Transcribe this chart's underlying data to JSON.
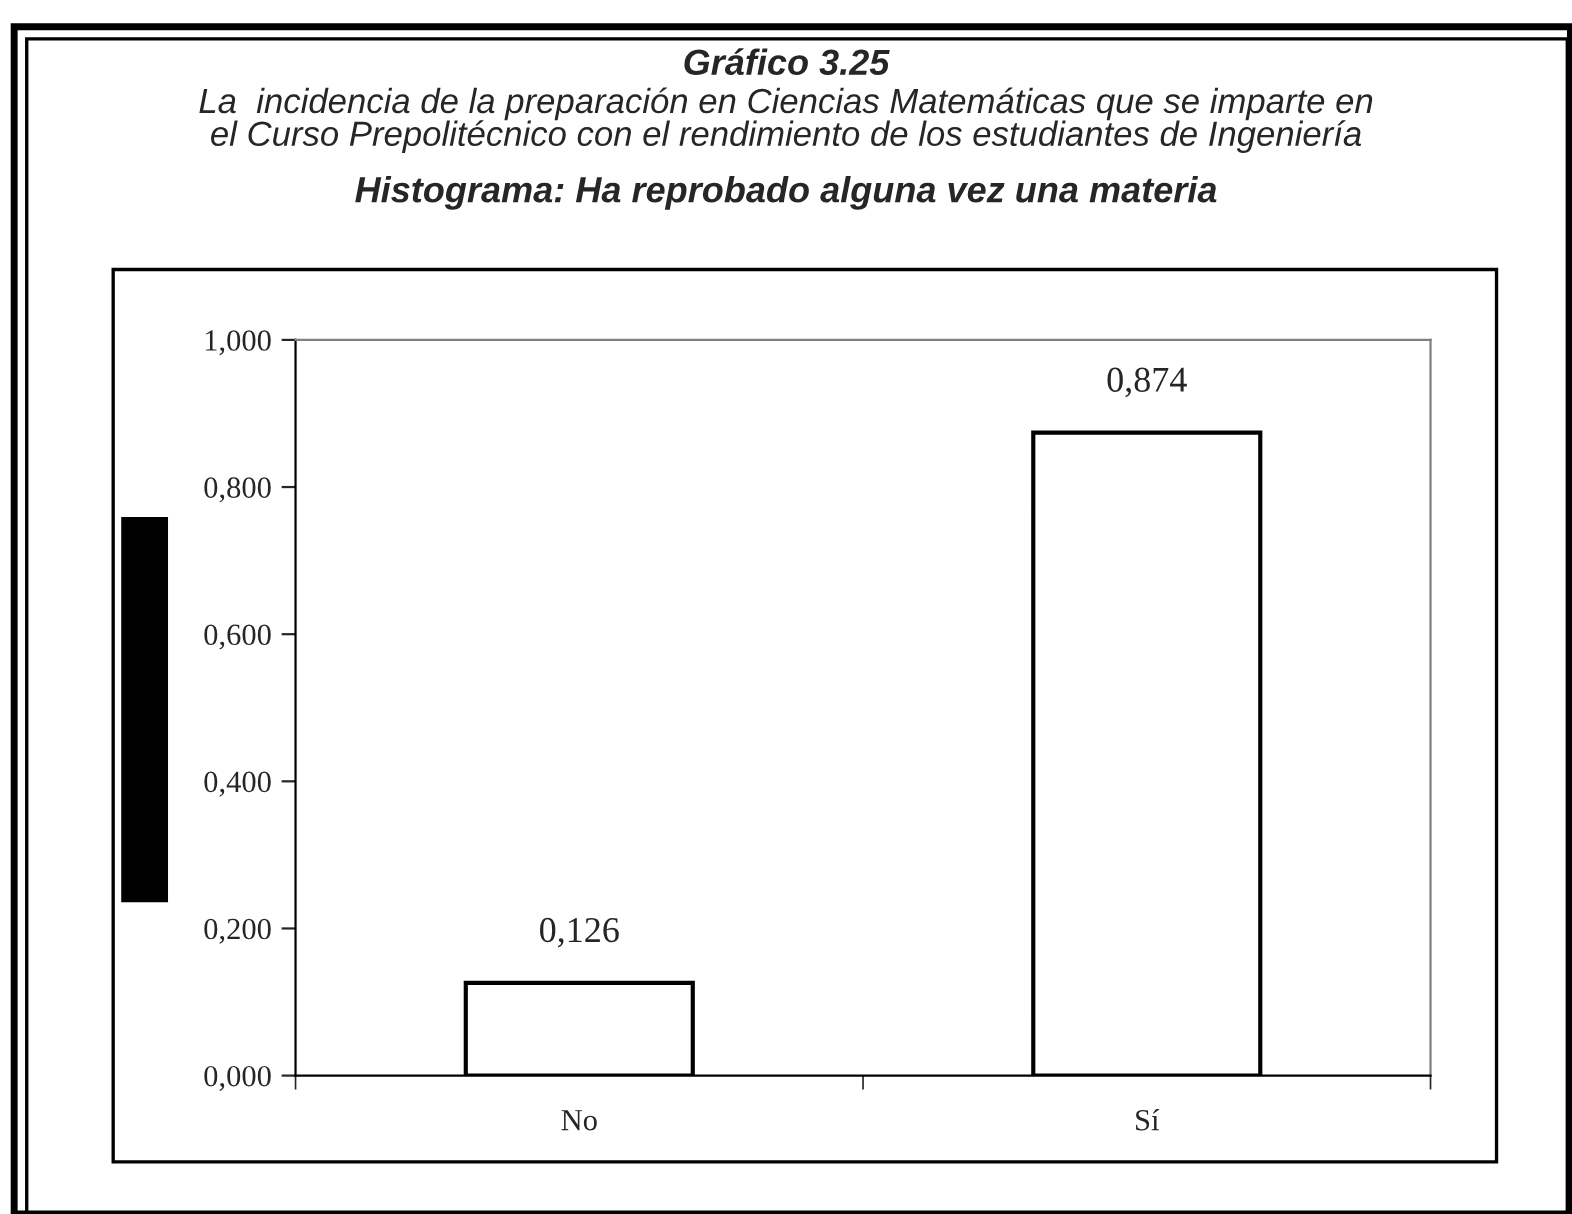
{
  "chart_data": {
    "type": "bar",
    "title": "Gráfico 3.25",
    "subtitle": "La  incidencia de la preparación en Ciencias Matemáticas que se imparte en\nel Curso Prepolitécnico con el rendimiento de los estudiantes de Ingeniería",
    "annotations": [
      "Histograma: Ha reprobado alguna vez una materia"
    ],
    "categories": [
      "No",
      "Sí"
    ],
    "values": [
      0.126,
      0.874
    ],
    "value_labels": [
      "0,126",
      "0,874"
    ],
    "color": "#ffffff",
    "ylim": [
      0,
      1
    ],
    "yticks": [
      {
        "value": 0,
        "label": "0,000"
      },
      {
        "value": 0.2,
        "label": "0,200"
      },
      {
        "value": 0.4,
        "label": "0,400"
      },
      {
        "value": 0.6,
        "label": "0,600"
      },
      {
        "value": 0.8,
        "label": "0,800"
      },
      {
        "value": 1,
        "label": "1,000"
      }
    ],
    "grid": false,
    "legend": false
  }
}
